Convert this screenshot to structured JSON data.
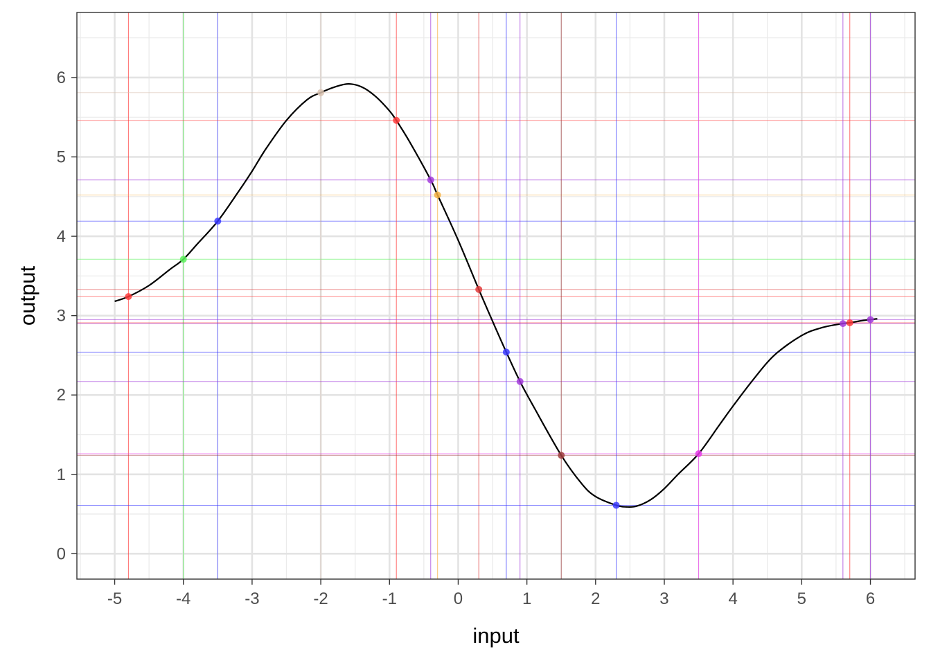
{
  "chart_data": {
    "type": "scatter",
    "title": "",
    "xlabel": "input",
    "ylabel": "output",
    "xlim": [
      -5.55,
      6.65
    ],
    "ylim": [
      -0.32,
      6.82
    ],
    "x_ticks": [
      -5,
      -4,
      -3,
      -2,
      -1,
      0,
      1,
      2,
      3,
      4,
      5,
      6
    ],
    "y_ticks": [
      0,
      1,
      2,
      3,
      4,
      5,
      6
    ],
    "x_tick_labels": [
      "-5",
      "-4",
      "-3",
      "-2",
      "-1",
      "0",
      "1",
      "2",
      "3",
      "4",
      "5",
      "6"
    ],
    "y_tick_labels": [
      "0",
      "1",
      "2",
      "3",
      "4",
      "5",
      "6"
    ],
    "grid": true,
    "legend": "none",
    "curve": {
      "color": "#000000",
      "x": [
        -5.0,
        -4.8,
        -4.5,
        -4.2,
        -4.0,
        -3.8,
        -3.5,
        -3.2,
        -3.0,
        -2.8,
        -2.5,
        -2.2,
        -2.0,
        -1.8,
        -1.6,
        -1.4,
        -1.2,
        -1.0,
        -0.9,
        -0.7,
        -0.4,
        -0.3,
        0.0,
        0.3,
        0.5,
        0.7,
        0.9,
        1.1,
        1.5,
        1.8,
        2.0,
        2.3,
        2.45,
        2.6,
        2.8,
        3.0,
        3.2,
        3.5,
        3.8,
        4.0,
        4.3,
        4.6,
        5.0,
        5.3,
        5.6,
        5.7,
        5.9,
        6.1
      ],
      "y": [
        3.18,
        3.24,
        3.38,
        3.58,
        3.71,
        3.9,
        4.19,
        4.56,
        4.82,
        5.1,
        5.46,
        5.72,
        5.81,
        5.88,
        5.92,
        5.88,
        5.76,
        5.58,
        5.46,
        5.18,
        4.71,
        4.52,
        3.95,
        3.33,
        2.93,
        2.54,
        2.17,
        1.85,
        1.24,
        0.88,
        0.72,
        0.61,
        0.59,
        0.6,
        0.68,
        0.82,
        1.0,
        1.26,
        1.62,
        1.86,
        2.2,
        2.5,
        2.75,
        2.85,
        2.9,
        2.91,
        2.94,
        2.96
      ]
    },
    "points": [
      {
        "x": -4.8,
        "y": 3.24,
        "color": "#ff3b3b"
      },
      {
        "x": -4.0,
        "y": 3.71,
        "color": "#5cf25c"
      },
      {
        "x": -3.5,
        "y": 4.19,
        "color": "#3b3bff"
      },
      {
        "x": -2.0,
        "y": 5.81,
        "color": "#d9c2b0"
      },
      {
        "x": -0.9,
        "y": 5.46,
        "color": "#ff3b3b"
      },
      {
        "x": -0.4,
        "y": 4.71,
        "color": "#a23bdb"
      },
      {
        "x": -0.3,
        "y": 4.52,
        "color": "#f5b041"
      },
      {
        "x": 0.3,
        "y": 3.33,
        "color": "#e03b3b"
      },
      {
        "x": 0.7,
        "y": 2.54,
        "color": "#3b3bff"
      },
      {
        "x": 0.9,
        "y": 2.17,
        "color": "#a23bdb"
      },
      {
        "x": 1.5,
        "y": 1.24,
        "color": "#a04040"
      },
      {
        "x": 2.3,
        "y": 0.61,
        "color": "#3b3bff"
      },
      {
        "x": 3.5,
        "y": 1.26,
        "color": "#e83be8"
      },
      {
        "x": 5.6,
        "y": 2.9,
        "color": "#a23bdb"
      },
      {
        "x": 5.7,
        "y": 2.91,
        "color": "#ff3b3b"
      },
      {
        "x": 6.0,
        "y": 2.95,
        "color": "#a23bdb"
      }
    ]
  }
}
